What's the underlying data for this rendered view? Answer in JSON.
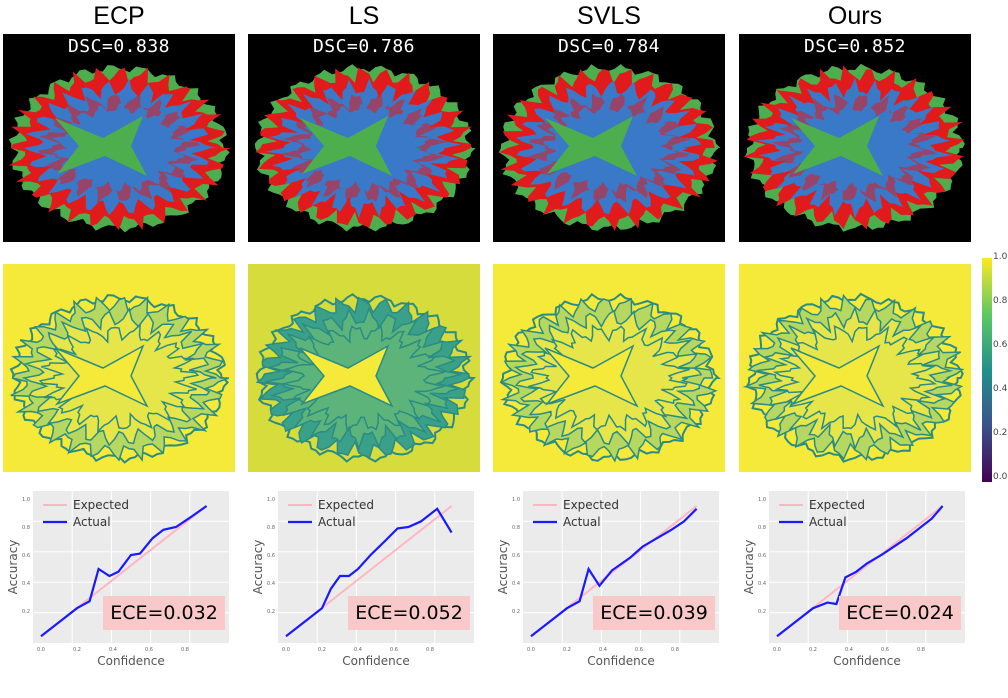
{
  "panels": [
    {
      "method": "ECP",
      "dsc": "DSC=0.838",
      "ece": "ECE=0.032",
      "actual": [
        [
          0,
          0.02
        ],
        [
          0.1,
          0.12
        ],
        [
          0.2,
          0.22
        ],
        [
          0.27,
          0.27
        ],
        [
          0.32,
          0.5
        ],
        [
          0.38,
          0.45
        ],
        [
          0.43,
          0.48
        ],
        [
          0.5,
          0.6
        ],
        [
          0.55,
          0.61
        ],
        [
          0.62,
          0.72
        ],
        [
          0.68,
          0.78
        ],
        [
          0.75,
          0.8
        ],
        [
          0.82,
          0.86
        ],
        [
          0.92,
          0.95
        ]
      ]
    },
    {
      "method": "LS",
      "dsc": "DSC=0.786",
      "ece": "ECE=0.052",
      "actual": [
        [
          0,
          0.02
        ],
        [
          0.1,
          0.12
        ],
        [
          0.2,
          0.22
        ],
        [
          0.25,
          0.36
        ],
        [
          0.3,
          0.45
        ],
        [
          0.35,
          0.45
        ],
        [
          0.4,
          0.5
        ],
        [
          0.47,
          0.6
        ],
        [
          0.55,
          0.7
        ],
        [
          0.62,
          0.79
        ],
        [
          0.68,
          0.8
        ],
        [
          0.75,
          0.84
        ],
        [
          0.84,
          0.93
        ],
        [
          0.92,
          0.76
        ]
      ]
    },
    {
      "method": "SVLS",
      "dsc": "DSC=0.784",
      "ece": "ECE=0.039",
      "actual": [
        [
          0,
          0.02
        ],
        [
          0.1,
          0.12
        ],
        [
          0.2,
          0.22
        ],
        [
          0.27,
          0.27
        ],
        [
          0.32,
          0.5
        ],
        [
          0.38,
          0.38
        ],
        [
          0.45,
          0.49
        ],
        [
          0.55,
          0.58
        ],
        [
          0.62,
          0.66
        ],
        [
          0.7,
          0.72
        ],
        [
          0.78,
          0.78
        ],
        [
          0.85,
          0.84
        ],
        [
          0.92,
          0.93
        ]
      ]
    },
    {
      "method": "Ours",
      "dsc": "DSC=0.852",
      "ece": "ECE=0.024",
      "actual": [
        [
          0,
          0.02
        ],
        [
          0.1,
          0.12
        ],
        [
          0.2,
          0.22
        ],
        [
          0.28,
          0.26
        ],
        [
          0.33,
          0.25
        ],
        [
          0.38,
          0.44
        ],
        [
          0.44,
          0.48
        ],
        [
          0.5,
          0.54
        ],
        [
          0.58,
          0.6
        ],
        [
          0.65,
          0.66
        ],
        [
          0.72,
          0.72
        ],
        [
          0.8,
          0.8
        ],
        [
          0.86,
          0.86
        ],
        [
          0.92,
          0.95
        ]
      ]
    }
  ],
  "reliability": {
    "xlabel": "Confidence",
    "ylabel": "Accuracy",
    "legend_expected": "Expected",
    "legend_actual": "Actual",
    "expected_color": "#ffb6c1",
    "actual_color": "#1a1aff",
    "xticks": [
      "0.0",
      "0.2",
      "0.4",
      "0.6",
      "0.8"
    ],
    "yticks": [
      "0.2",
      "0.4",
      "0.6",
      "0.8",
      "1.0"
    ]
  },
  "colorbar": {
    "ticks": [
      "1.0",
      "0.8",
      "0.6",
      "0.4",
      "0.2",
      "0.0"
    ]
  },
  "colors": {
    "seg_red": "#e11b1b",
    "seg_green": "#4cae4c",
    "seg_blue": "#3a78c8",
    "conf_yellow": "#f5ea3a",
    "conf_teal": "#2a8c84"
  }
}
